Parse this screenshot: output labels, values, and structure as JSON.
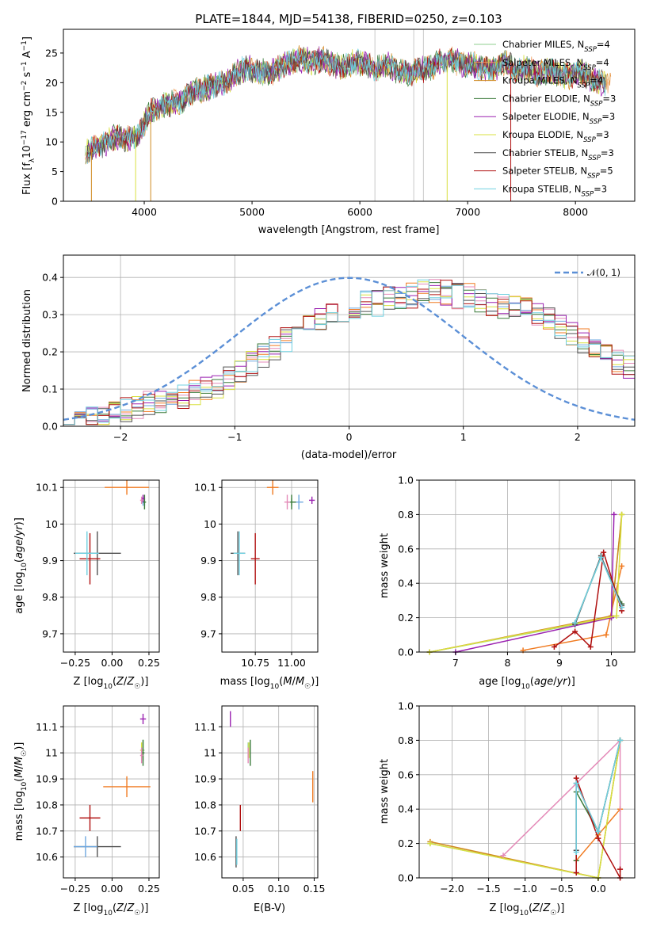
{
  "colors": [
    "#8fcf8f",
    "#f0a060",
    "#d08a20",
    "#3a7a3a",
    "#9a20b0",
    "#d8e040",
    "#505050",
    "#b01010",
    "#70d0e0"
  ],
  "chart_data": [
    {
      "type": "line",
      "title": "PLATE=1844, MJD=54138, FIBERID=0250, z=0.103",
      "xlabel": "wavelength [Angstrom, rest frame]",
      "ylabel": "Flux [fλ10^-17 erg cm^-2 s^-1 A^-1]",
      "xlim": [
        3250,
        8550
      ],
      "ylim": [
        0,
        29
      ],
      "xticks": [
        4000,
        5000,
        6000,
        7000,
        8000
      ],
      "yticks": [
        0,
        5,
        10,
        15,
        20,
        25
      ],
      "legend": "right",
      "series": [
        {
          "name": "Chabrier MILES, N_SSP=4"
        },
        {
          "name": "Salpeter MILES, N_SSP=4"
        },
        {
          "name": "Kroupa MILES, N_SSP=4"
        },
        {
          "name": "Chabrier ELODIE, N_SSP=3"
        },
        {
          "name": "Salpeter ELODIE, N_SSP=3"
        },
        {
          "name": "Kroupa ELODIE, N_SSP=3"
        },
        {
          "name": "Chabrier STELIB, N_SSP=3"
        },
        {
          "name": "Salpeter STELIB, N_SSP=5"
        },
        {
          "name": "Kroupa STELIB, N_SSP=3"
        }
      ],
      "spectrum": {
        "x": [
          3450,
          3550,
          3650,
          3750,
          3850,
          3950,
          4050,
          4150,
          4250,
          4350,
          4450,
          4550,
          4650,
          4750,
          4850,
          4950,
          5050,
          5150,
          5250,
          5350,
          5450,
          5550,
          5650,
          5750,
          5850,
          5950,
          6050,
          6150,
          6250,
          6350,
          6450,
          6550,
          6650,
          6750,
          6850,
          6950,
          7050,
          7150,
          7250,
          7350,
          7450,
          7550,
          7650,
          7750,
          7850,
          7950,
          8050,
          8150,
          8250
        ],
        "y": [
          8.5,
          9,
          10,
          11,
          10.5,
          11,
          15,
          16,
          16.5,
          17,
          18.5,
          19,
          19.5,
          20,
          21.5,
          22.5,
          22,
          21.5,
          22.5,
          23.5,
          24,
          23.5,
          24,
          23,
          22.5,
          23.5,
          23,
          22.5,
          23,
          22,
          21.5,
          22,
          22.5,
          23.5,
          24,
          23,
          23,
          22.5,
          22.5,
          23.5,
          22,
          22.5,
          21.5,
          22,
          21.5,
          21,
          22,
          20.5,
          20
        ]
      }
    },
    {
      "type": "line",
      "xlabel": "(data-model)/error",
      "ylabel": "Normed distribution",
      "xlim": [
        -2.5,
        2.5
      ],
      "ylim": [
        0,
        0.46
      ],
      "xticks": [
        -2,
        -1,
        0,
        1,
        2
      ],
      "yticks": [
        0.0,
        0.1,
        0.2,
        0.3,
        0.4
      ],
      "legend": "top-right",
      "gaussian_label": "𝒩(0, 1)",
      "histogram": {
        "bin_edges_start": -2.5,
        "bin_width": 0.1,
        "base": [
          0.02,
          0.02,
          0.025,
          0.03,
          0.04,
          0.045,
          0.05,
          0.06,
          0.065,
          0.07,
          0.08,
          0.09,
          0.1,
          0.11,
          0.13,
          0.15,
          0.17,
          0.19,
          0.21,
          0.23,
          0.25,
          0.27,
          0.29,
          0.3,
          0.31,
          0.32,
          0.33,
          0.33,
          0.34,
          0.35,
          0.35,
          0.36,
          0.36,
          0.36,
          0.35,
          0.35,
          0.34,
          0.33,
          0.32,
          0.32,
          0.31,
          0.3,
          0.29,
          0.27,
          0.25,
          0.23,
          0.21,
          0.19,
          0.17,
          0.16
        ]
      }
    },
    {
      "type": "scatter",
      "xlabel": "Z [log10(Z/Z☉)]",
      "ylabel": "age [log10(age/yr)]",
      "xlim": [
        -0.33,
        0.32
      ],
      "ylim": [
        9.65,
        10.12
      ],
      "xticks": [
        -0.25,
        0.0,
        0.25
      ],
      "xtick_labels": [
        "−0.25",
        "0.00",
        "0.25"
      ],
      "yticks": [
        9.7,
        9.8,
        9.9,
        10.0,
        10.1
      ],
      "points": [
        {
          "x": 0.22,
          "y": 10.06,
          "xerr": 0.01,
          "yerr": 0.01
        },
        {
          "x": 0.1,
          "y": 10.1,
          "xerr": 0.15,
          "yerr": 0.02
        },
        {
          "x": 0.21,
          "y": 10.06,
          "xerr": 0.01,
          "yerr": 0.01
        },
        {
          "x": 0.22,
          "y": 10.06,
          "xerr": 0.01,
          "yerr": 0.02
        },
        {
          "x": 0.21,
          "y": 10.07,
          "xerr": 0.01,
          "yerr": 0.01
        },
        {
          "x": 0.2,
          "y": 10.065,
          "xerr": 0.01,
          "yerr": 0.01
        },
        {
          "x": -0.1,
          "y": 9.92,
          "xerr": 0.16,
          "yerr": 0.06
        },
        {
          "x": -0.15,
          "y": 9.905,
          "xerr": 0.07,
          "yerr": 0.07
        },
        {
          "x": -0.17,
          "y": 9.92,
          "xerr": 0.08,
          "yerr": 0.06
        }
      ]
    },
    {
      "type": "scatter",
      "xlabel": "mass [log10(M/M☉)]",
      "xlim": [
        10.52,
        11.18
      ],
      "ylim": [
        9.65,
        10.12
      ],
      "xticks": [
        10.75,
        11.0
      ],
      "xtick_labels": [
        "10.75",
        "11.00"
      ],
      "yticks": [
        9.7,
        9.8,
        9.9,
        10.0,
        10.1
      ],
      "points": [
        {
          "x": 11.0,
          "y": 10.06,
          "xerr": 0.02,
          "yerr": 0.01
        },
        {
          "x": 10.87,
          "y": 10.1,
          "xerr": 0.04,
          "yerr": 0.02
        },
        {
          "x": 11.05,
          "y": 10.06,
          "xerr": 0.03,
          "yerr": 0.02
        },
        {
          "x": 11.0,
          "y": 10.06,
          "xerr": 0.03,
          "yerr": 0.02
        },
        {
          "x": 11.14,
          "y": 10.065,
          "xerr": 0.02,
          "yerr": 0.01
        },
        {
          "x": 10.97,
          "y": 10.06,
          "xerr": 0.02,
          "yerr": 0.02
        },
        {
          "x": 10.63,
          "y": 9.92,
          "xerr": 0.05,
          "yerr": 0.06
        },
        {
          "x": 10.75,
          "y": 9.905,
          "xerr": 0.03,
          "yerr": 0.07
        },
        {
          "x": 10.64,
          "y": 9.92,
          "xerr": 0.04,
          "yerr": 0.06
        }
      ]
    },
    {
      "type": "line",
      "xlabel": "age [log10(age/yr)]",
      "ylabel": "mass weight",
      "xlim": [
        6.3,
        10.45
      ],
      "ylim": [
        0,
        1.0
      ],
      "xticks": [
        7,
        8,
        9,
        10
      ],
      "yticks": [
        0.0,
        0.2,
        0.4,
        0.6,
        0.8,
        1.0
      ],
      "series": [
        {
          "x": [
            6.5,
            10.0,
            10.2
          ],
          "y": [
            0.0,
            0.2,
            0.8
          ]
        },
        {
          "x": [
            8.3,
            9.9,
            10.2
          ],
          "y": [
            0.01,
            0.1,
            0.5
          ]
        },
        {
          "x": [
            6.5,
            10.0,
            10.2
          ],
          "y": [
            0.0,
            0.21,
            0.8
          ]
        },
        {
          "x": [
            9.3,
            9.8,
            10.2
          ],
          "y": [
            0.17,
            0.55,
            0.28
          ]
        },
        {
          "x": [
            7.0,
            10.0,
            10.05
          ],
          "y": [
            0.0,
            0.2,
            0.8
          ]
        },
        {
          "x": [
            6.5,
            10.1,
            10.2
          ],
          "y": [
            0.0,
            0.21,
            0.8
          ]
        },
        {
          "x": [
            9.3,
            9.8,
            10.2
          ],
          "y": [
            0.16,
            0.56,
            0.27
          ]
        },
        {
          "x": [
            8.9,
            9.3,
            9.6,
            9.85,
            10.2
          ],
          "y": [
            0.03,
            0.12,
            0.03,
            0.58,
            0.24
          ]
        },
        {
          "x": [
            9.3,
            9.8,
            10.2
          ],
          "y": [
            0.17,
            0.55,
            0.26
          ]
        }
      ]
    },
    {
      "type": "scatter",
      "xlabel": "Z [log10(Z/Z☉)]",
      "ylabel": "mass [log10(M/M☉)]",
      "xlim": [
        -0.33,
        0.32
      ],
      "ylim": [
        10.52,
        11.18
      ],
      "xticks": [
        -0.25,
        0.0,
        0.25
      ],
      "xtick_labels": [
        "−0.25",
        "0.00",
        "0.25"
      ],
      "yticks": [
        10.6,
        10.7,
        10.8,
        10.9,
        11.0,
        11.1
      ],
      "points": [
        {
          "x": 0.21,
          "y": 11.01,
          "xerr": 0.01,
          "yerr": 0.04
        },
        {
          "x": 0.1,
          "y": 10.87,
          "xerr": 0.16,
          "yerr": 0.04
        },
        {
          "x": 0.2,
          "y": 11.01,
          "xerr": 0.01,
          "yerr": 0.03
        },
        {
          "x": 0.21,
          "y": 11.0,
          "xerr": 0.01,
          "yerr": 0.05
        },
        {
          "x": 0.21,
          "y": 11.13,
          "xerr": 0.02,
          "yerr": 0.02
        },
        {
          "x": 0.2,
          "y": 10.99,
          "xerr": 0.01,
          "yerr": 0.03
        },
        {
          "x": -0.1,
          "y": 10.64,
          "xerr": 0.16,
          "yerr": 0.04
        },
        {
          "x": -0.15,
          "y": 10.75,
          "xerr": 0.07,
          "yerr": 0.05
        },
        {
          "x": -0.18,
          "y": 10.64,
          "xerr": 0.08,
          "yerr": 0.04
        }
      ]
    },
    {
      "type": "scatter",
      "xlabel": "E(B-V)",
      "xlim": [
        0.02,
        0.155
      ],
      "ylim": [
        10.52,
        11.18
      ],
      "xticks": [
        0.05,
        0.1,
        0.15
      ],
      "xtick_labels": [
        "0.05",
        "0.10",
        "0.15"
      ],
      "yticks": [
        10.6,
        10.7,
        10.8,
        10.9,
        11.0,
        11.1
      ],
      "points": [
        {
          "x": 0.057,
          "y": 11.01,
          "yerr": 0.03
        },
        {
          "x": 0.148,
          "y": 10.87,
          "yerr": 0.06
        },
        {
          "x": 0.058,
          "y": 11.01,
          "yerr": 0.03
        },
        {
          "x": 0.06,
          "y": 11.0,
          "yerr": 0.05
        },
        {
          "x": 0.032,
          "y": 11.13,
          "yerr": 0.03
        },
        {
          "x": 0.057,
          "y": 10.99,
          "yerr": 0.03
        },
        {
          "x": 0.04,
          "y": 10.62,
          "yerr": 0.06
        },
        {
          "x": 0.046,
          "y": 10.75,
          "yerr": 0.05
        },
        {
          "x": 0.041,
          "y": 10.62,
          "yerr": 0.05
        }
      ]
    },
    {
      "type": "line",
      "xlabel": "Z [log10(Z/Z☉)]",
      "ylabel": "mass weight",
      "xlim": [
        -2.45,
        0.5
      ],
      "ylim": [
        0,
        1.0
      ],
      "xticks": [
        -2.0,
        -1.5,
        -1.0,
        -0.5,
        0.0
      ],
      "xtick_labels": [
        "−2.0",
        "−1.5",
        "−1.0",
        "−0.5",
        "0.0"
      ],
      "yticks": [
        0.0,
        0.2,
        0.4,
        0.6,
        0.8,
        1.0
      ],
      "series": [
        {
          "x": [
            -2.3,
            0.0,
            0.3
          ],
          "y": [
            0.2,
            0.0,
            0.8
          ]
        },
        {
          "x": [
            -0.3,
            0.0,
            0.3
          ],
          "y": [
            0.1,
            0.25,
            0.4
          ]
        },
        {
          "x": [
            -2.3,
            0.0,
            0.3
          ],
          "y": [
            0.21,
            0.0,
            0.8
          ]
        },
        {
          "x": [
            -0.3,
            -0.3,
            0.0,
            0.3
          ],
          "y": [
            0.1,
            0.5,
            0.27,
            0.8
          ]
        },
        {
          "x": [
            -1.3,
            0.3,
            0.3
          ],
          "y": [
            0.13,
            0.8,
            0.05
          ]
        },
        {
          "x": [
            -2.3,
            0.0,
            0.3
          ],
          "y": [
            0.2,
            0.0,
            0.8
          ]
        },
        {
          "x": [
            -0.3,
            -0.3,
            0.0,
            0.3
          ],
          "y": [
            0.16,
            0.55,
            0.27,
            0.8
          ]
        },
        {
          "x": [
            -0.3,
            -0.3,
            0.0,
            0.3,
            0.3
          ],
          "y": [
            0.03,
            0.58,
            0.23,
            0.0,
            0.05
          ]
        },
        {
          "x": [
            -0.3,
            -0.3,
            0.0,
            0.3
          ],
          "y": [
            0.15,
            0.55,
            0.27,
            0.8
          ]
        }
      ]
    }
  ]
}
